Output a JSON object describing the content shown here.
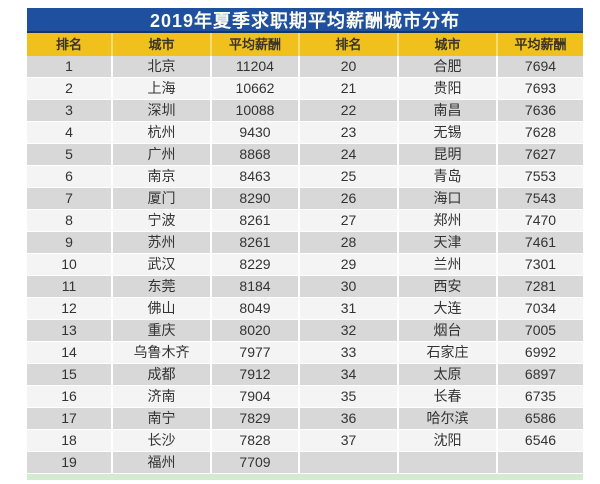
{
  "title": "2019年夏季求职期平均薪酬城市分布",
  "header": {
    "columns": [
      "排名",
      "城市",
      "平均薪酬",
      "排名",
      "城市",
      "平均薪酬"
    ]
  },
  "chart_data": {
    "type": "table",
    "title": "2019年夏季求职期平均薪酬城市分布",
    "columns": [
      "排名",
      "城市",
      "平均薪酬"
    ],
    "layout": "two column groups side by side; ranks 1-19 in left group, ranks 20-37 in right group, last right cell empty",
    "rows": [
      [
        1,
        "北京",
        11204
      ],
      [
        2,
        "上海",
        10662
      ],
      [
        3,
        "深圳",
        10088
      ],
      [
        4,
        "杭州",
        9430
      ],
      [
        5,
        "广州",
        8868
      ],
      [
        6,
        "南京",
        8463
      ],
      [
        7,
        "厦门",
        8290
      ],
      [
        8,
        "宁波",
        8261
      ],
      [
        9,
        "苏州",
        8261
      ],
      [
        10,
        "武汉",
        8229
      ],
      [
        11,
        "东莞",
        8184
      ],
      [
        12,
        "佛山",
        8049
      ],
      [
        13,
        "重庆",
        8020
      ],
      [
        14,
        "乌鲁木齐",
        7977
      ],
      [
        15,
        "成都",
        7912
      ],
      [
        16,
        "济南",
        7904
      ],
      [
        17,
        "南宁",
        7829
      ],
      [
        18,
        "长沙",
        7828
      ],
      [
        19,
        "福州",
        7709
      ],
      [
        20,
        "合肥",
        7694
      ],
      [
        21,
        "贵阳",
        7693
      ],
      [
        22,
        "南昌",
        7636
      ],
      [
        23,
        "无锡",
        7628
      ],
      [
        24,
        "昆明",
        7627
      ],
      [
        25,
        "青岛",
        7553
      ],
      [
        26,
        "海口",
        7543
      ],
      [
        27,
        "郑州",
        7470
      ],
      [
        28,
        "天津",
        7461
      ],
      [
        29,
        "兰州",
        7301
      ],
      [
        30,
        "西安",
        7281
      ],
      [
        31,
        "大连",
        7034
      ],
      [
        32,
        "烟台",
        7005
      ],
      [
        33,
        "石家庄",
        6992
      ],
      [
        34,
        "太原",
        6897
      ],
      [
        35,
        "长春",
        6735
      ],
      [
        36,
        "哈尔滨",
        6586
      ],
      [
        37,
        "沈阳",
        6546
      ]
    ]
  },
  "colors": {
    "title_bar_bg": "#1f4f9f",
    "title_bar_border": "#16355f",
    "title_text": "#fbfbef",
    "header_bg": "#f0c11c",
    "header_gap": "#f7dc6f",
    "header_text": "#3a3528",
    "row_odd_bg": "#d8d8d8",
    "row_even_bg": "#f4f4f4",
    "cell_text": "#333333",
    "footer_strip": "#d3ecd0"
  }
}
